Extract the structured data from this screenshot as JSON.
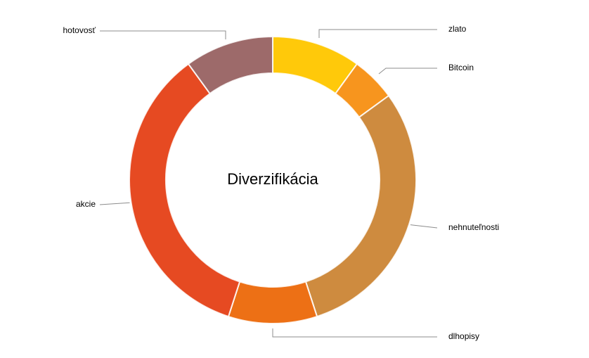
{
  "chart_data": {
    "type": "pie",
    "variant": "donut",
    "title": "Diverzifikácia",
    "categories": [
      "zlato",
      "Bitcoin",
      "nehnuteľnosti",
      "dlhopisy",
      "akcie",
      "hotovosť"
    ],
    "values": [
      10,
      5,
      30,
      10,
      35,
      10
    ],
    "colors": [
      "#FFC90A",
      "#F7951E",
      "#CE8B3F",
      "#ED7015",
      "#E64A22",
      "#9D6A6A"
    ],
    "legend": "none",
    "labels": "outside-with-leader-lines"
  }
}
